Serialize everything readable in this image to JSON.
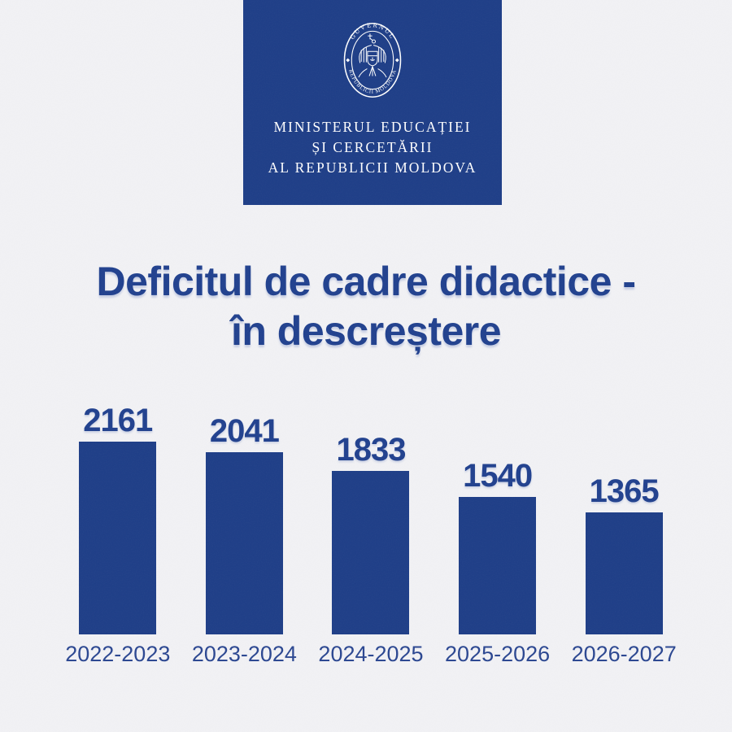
{
  "page": {
    "background_color": "#f2f2f5",
    "accent_blue": "#1d3d87",
    "title_blue": "#20408e"
  },
  "header_card": {
    "emblem": {
      "ring_top_text": "GUVERNUL",
      "ring_bottom_text": "REPUBLICII MOLDOVA"
    },
    "ministry_lines": [
      "MINISTERUL EDUCAȚIEI",
      "ȘI CERCETĂRII",
      "AL REPUBLICII MOLDOVA"
    ]
  },
  "title": {
    "line1": "Deficitul de cadre didactice -",
    "line2": "în descreștere"
  },
  "chart_data": {
    "type": "bar",
    "categories": [
      "2022-2023",
      "2023-2024",
      "2024-2025",
      "2025-2026",
      "2026-2027"
    ],
    "values": [
      2161,
      2041,
      1833,
      1540,
      1365
    ],
    "title": "Deficitul de cadre didactice - în descreștere",
    "xlabel": "",
    "ylabel": "",
    "ylim": [
      0,
      2161
    ],
    "grid": false,
    "legend": false,
    "bar_color": "#1d3d87",
    "value_labels_shown": true,
    "axes_shown": false
  }
}
